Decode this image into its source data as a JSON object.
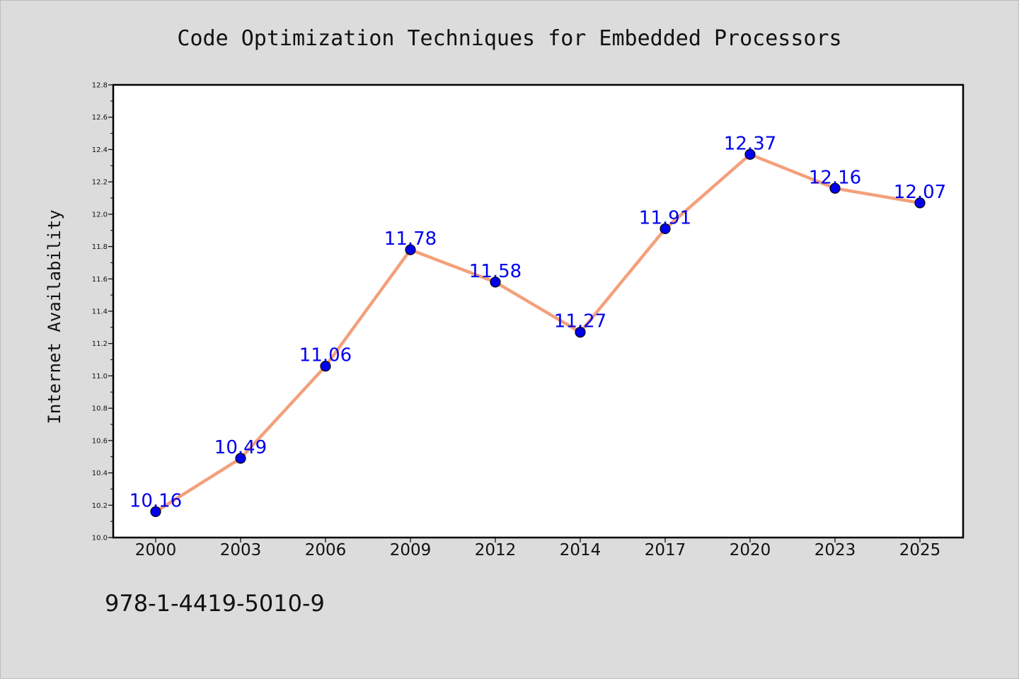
{
  "chart_data": {
    "type": "line",
    "title": "Code Optimization Techniques for Embedded Processors",
    "xlabel": "",
    "ylabel": "Internet Availability",
    "categories": [
      "2000",
      "2003",
      "2006",
      "2009",
      "2012",
      "2014",
      "2017",
      "2020",
      "2023",
      "2025"
    ],
    "series": [
      {
        "values": [
          10.16,
          10.49,
          11.06,
          11.78,
          11.58,
          11.27,
          11.91,
          12.37,
          12.16,
          12.07
        ],
        "data_labels": [
          "10.16",
          "10.49",
          "11.06",
          "11.78",
          "11.58",
          "11.27",
          "11.91",
          "12.37",
          "12.16",
          "12.07"
        ]
      }
    ],
    "ylim": [
      10.0,
      12.8
    ],
    "yticks": [
      "10.0",
      "10.2",
      "10.4",
      "10.6",
      "10.8",
      "11.0",
      "11.2",
      "11.4",
      "11.6",
      "11.8",
      "12.0",
      "12.2",
      "12.4",
      "12.6",
      "12.8"
    ],
    "grid": false,
    "legend": "none",
    "colors": {
      "line": "#f4a07c",
      "marker": "#0000ee",
      "data_label": "#0000ee",
      "background": "#dcdcdc",
      "plot_background": "#ffffff"
    }
  },
  "footer": {
    "isbn": "978-1-4419-5010-9"
  }
}
